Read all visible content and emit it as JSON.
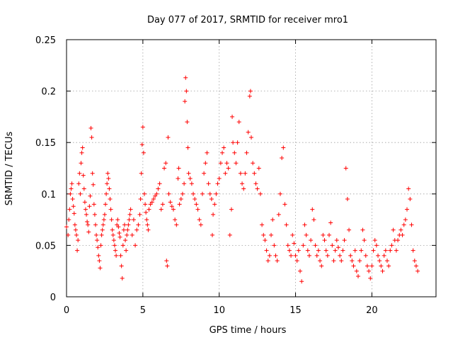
{
  "chart_data": {
    "type": "scatter",
    "title": "Day 077 of 2017, SRMTID for receiver mro1",
    "xlabel": "GPS time / hours",
    "ylabel": "SRMTID / TECUs",
    "xlim": [
      0,
      24.2
    ],
    "ylim": [
      0,
      0.25
    ],
    "grid": true,
    "marker": "plus",
    "x_tick_values": [
      0,
      5,
      10,
      15,
      20
    ],
    "x_tick_labels": [
      "0",
      "5",
      "10",
      "15",
      "20"
    ],
    "y_tick_values": [
      0,
      0.05,
      0.1,
      0.15,
      0.2,
      0.25
    ],
    "y_tick_labels": [
      "0",
      "0.05",
      "0.1",
      "0.15",
      "0.2",
      "0.25"
    ],
    "series": [
      {
        "name": "SRMTID",
        "color": "#ff0000",
        "points": [
          [
            0.0,
            0.068
          ],
          [
            0.1,
            0.06
          ],
          [
            0.15,
            0.075
          ],
          [
            0.2,
            0.085
          ],
          [
            0.25,
            0.1
          ],
          [
            0.3,
            0.105
          ],
          [
            0.35,
            0.11
          ],
          [
            0.4,
            0.095
          ],
          [
            0.45,
            0.088
          ],
          [
            0.5,
            0.081
          ],
          [
            0.55,
            0.07
          ],
          [
            0.6,
            0.065
          ],
          [
            0.65,
            0.06
          ],
          [
            0.7,
            0.045
          ],
          [
            0.75,
            0.055
          ],
          [
            0.8,
            0.11
          ],
          [
            0.85,
            0.12
          ],
          [
            0.9,
            0.1
          ],
          [
            0.95,
            0.13
          ],
          [
            1.0,
            0.14
          ],
          [
            1.05,
            0.145
          ],
          [
            1.1,
            0.118
          ],
          [
            1.15,
            0.105
          ],
          [
            1.2,
            0.092
          ],
          [
            1.25,
            0.085
          ],
          [
            1.3,
            0.08
          ],
          [
            1.35,
            0.073
          ],
          [
            1.4,
            0.07
          ],
          [
            1.45,
            0.063
          ],
          [
            1.5,
            0.088
          ],
          [
            1.55,
            0.098
          ],
          [
            1.6,
            0.164
          ],
          [
            1.65,
            0.155
          ],
          [
            1.7,
            0.12
          ],
          [
            1.75,
            0.109
          ],
          [
            1.8,
            0.09
          ],
          [
            1.85,
            0.08
          ],
          [
            1.9,
            0.07
          ],
          [
            1.95,
            0.06
          ],
          [
            2.0,
            0.055
          ],
          [
            2.05,
            0.048
          ],
          [
            2.1,
            0.04
          ],
          [
            2.15,
            0.035
          ],
          [
            2.2,
            0.028
          ],
          [
            2.25,
            0.05
          ],
          [
            2.3,
            0.06
          ],
          [
            2.35,
            0.065
          ],
          [
            2.4,
            0.07
          ],
          [
            2.45,
            0.075
          ],
          [
            2.5,
            0.08
          ],
          [
            2.55,
            0.09
          ],
          [
            2.6,
            0.1
          ],
          [
            2.65,
            0.11
          ],
          [
            2.7,
            0.12
          ],
          [
            2.75,
            0.115
          ],
          [
            2.8,
            0.105
          ],
          [
            2.85,
            0.095
          ],
          [
            2.9,
            0.085
          ],
          [
            2.95,
            0.075
          ],
          [
            3.0,
            0.065
          ],
          [
            3.05,
            0.06
          ],
          [
            3.1,
            0.055
          ],
          [
            3.15,
            0.05
          ],
          [
            3.2,
            0.045
          ],
          [
            3.25,
            0.04
          ],
          [
            3.3,
            0.07
          ],
          [
            3.35,
            0.075
          ],
          [
            3.4,
            0.068
          ],
          [
            3.45,
            0.062
          ],
          [
            3.5,
            0.058
          ],
          [
            3.55,
            0.04
          ],
          [
            3.6,
            0.03
          ],
          [
            3.65,
            0.018
          ],
          [
            3.7,
            0.05
          ],
          [
            3.75,
            0.065
          ],
          [
            3.8,
            0.07
          ],
          [
            3.85,
            0.055
          ],
          [
            3.9,
            0.045
          ],
          [
            3.95,
            0.06
          ],
          [
            4.0,
            0.065
          ],
          [
            4.05,
            0.07
          ],
          [
            4.1,
            0.075
          ],
          [
            4.15,
            0.08
          ],
          [
            4.2,
            0.085
          ],
          [
            4.3,
            0.06
          ],
          [
            4.4,
            0.075
          ],
          [
            4.5,
            0.05
          ],
          [
            4.6,
            0.065
          ],
          [
            4.7,
            0.07
          ],
          [
            4.8,
            0.08
          ],
          [
            4.85,
            0.095
          ],
          [
            4.9,
            0.12
          ],
          [
            4.95,
            0.148
          ],
          [
            5.0,
            0.165
          ],
          [
            5.05,
            0.14
          ],
          [
            5.1,
            0.1
          ],
          [
            5.15,
            0.09
          ],
          [
            5.2,
            0.082
          ],
          [
            5.25,
            0.075
          ],
          [
            5.3,
            0.07
          ],
          [
            5.35,
            0.065
          ],
          [
            5.4,
            0.085
          ],
          [
            5.5,
            0.09
          ],
          [
            5.6,
            0.092
          ],
          [
            5.7,
            0.095
          ],
          [
            5.8,
            0.098
          ],
          [
            5.9,
            0.1
          ],
          [
            6.0,
            0.105
          ],
          [
            6.1,
            0.11
          ],
          [
            6.2,
            0.085
          ],
          [
            6.3,
            0.09
          ],
          [
            6.4,
            0.125
          ],
          [
            6.5,
            0.13
          ],
          [
            6.55,
            0.035
          ],
          [
            6.6,
            0.03
          ],
          [
            6.65,
            0.155
          ],
          [
            6.7,
            0.1
          ],
          [
            6.8,
            0.092
          ],
          [
            6.9,
            0.088
          ],
          [
            7.0,
            0.085
          ],
          [
            7.1,
            0.075
          ],
          [
            7.2,
            0.07
          ],
          [
            7.3,
            0.115
          ],
          [
            7.35,
            0.125
          ],
          [
            7.4,
            0.09
          ],
          [
            7.5,
            0.095
          ],
          [
            7.6,
            0.1
          ],
          [
            7.7,
            0.11
          ],
          [
            7.75,
            0.19
          ],
          [
            7.8,
            0.213
          ],
          [
            7.85,
            0.2
          ],
          [
            7.9,
            0.17
          ],
          [
            7.95,
            0.145
          ],
          [
            8.0,
            0.12
          ],
          [
            8.1,
            0.115
          ],
          [
            8.2,
            0.11
          ],
          [
            8.3,
            0.1
          ],
          [
            8.4,
            0.095
          ],
          [
            8.5,
            0.09
          ],
          [
            8.6,
            0.085
          ],
          [
            8.7,
            0.075
          ],
          [
            8.8,
            0.07
          ],
          [
            8.9,
            0.1
          ],
          [
            9.0,
            0.12
          ],
          [
            9.1,
            0.13
          ],
          [
            9.2,
            0.14
          ],
          [
            9.3,
            0.11
          ],
          [
            9.4,
            0.1
          ],
          [
            9.5,
            0.095
          ],
          [
            9.55,
            0.06
          ],
          [
            9.6,
            0.08
          ],
          [
            9.7,
            0.09
          ],
          [
            9.8,
            0.1
          ],
          [
            9.9,
            0.11
          ],
          [
            10.0,
            0.115
          ],
          [
            10.1,
            0.13
          ],
          [
            10.2,
            0.14
          ],
          [
            10.3,
            0.145
          ],
          [
            10.4,
            0.12
          ],
          [
            10.5,
            0.13
          ],
          [
            10.6,
            0.125
          ],
          [
            10.7,
            0.06
          ],
          [
            10.8,
            0.085
          ],
          [
            10.85,
            0.175
          ],
          [
            10.9,
            0.15
          ],
          [
            11.0,
            0.14
          ],
          [
            11.1,
            0.13
          ],
          [
            11.2,
            0.15
          ],
          [
            11.3,
            0.17
          ],
          [
            11.4,
            0.12
          ],
          [
            11.5,
            0.11
          ],
          [
            11.6,
            0.105
          ],
          [
            11.7,
            0.12
          ],
          [
            11.8,
            0.14
          ],
          [
            11.9,
            0.16
          ],
          [
            12.0,
            0.195
          ],
          [
            12.05,
            0.2
          ],
          [
            12.1,
            0.155
          ],
          [
            12.2,
            0.13
          ],
          [
            12.3,
            0.12
          ],
          [
            12.4,
            0.11
          ],
          [
            12.5,
            0.105
          ],
          [
            12.6,
            0.125
          ],
          [
            12.7,
            0.1
          ],
          [
            12.8,
            0.07
          ],
          [
            12.9,
            0.06
          ],
          [
            13.0,
            0.055
          ],
          [
            13.1,
            0.045
          ],
          [
            13.2,
            0.035
          ],
          [
            13.3,
            0.04
          ],
          [
            13.4,
            0.06
          ],
          [
            13.5,
            0.075
          ],
          [
            13.6,
            0.05
          ],
          [
            13.7,
            0.04
          ],
          [
            13.8,
            0.035
          ],
          [
            13.9,
            0.08
          ],
          [
            14.0,
            0.1
          ],
          [
            14.1,
            0.135
          ],
          [
            14.2,
            0.145
          ],
          [
            14.3,
            0.09
          ],
          [
            14.4,
            0.07
          ],
          [
            14.5,
            0.05
          ],
          [
            14.6,
            0.045
          ],
          [
            14.7,
            0.04
          ],
          [
            14.8,
            0.06
          ],
          [
            14.9,
            0.052
          ],
          [
            15.0,
            0.04
          ],
          [
            15.1,
            0.035
          ],
          [
            15.2,
            0.045
          ],
          [
            15.3,
            0.025
          ],
          [
            15.4,
            0.015
          ],
          [
            15.5,
            0.05
          ],
          [
            15.6,
            0.07
          ],
          [
            15.7,
            0.06
          ],
          [
            15.8,
            0.045
          ],
          [
            15.9,
            0.04
          ],
          [
            16.0,
            0.055
          ],
          [
            16.1,
            0.085
          ],
          [
            16.2,
            0.075
          ],
          [
            16.3,
            0.05
          ],
          [
            16.4,
            0.04
          ],
          [
            16.5,
            0.045
          ],
          [
            16.6,
            0.035
          ],
          [
            16.7,
            0.03
          ],
          [
            16.8,
            0.06
          ],
          [
            16.9,
            0.055
          ],
          [
            17.0,
            0.045
          ],
          [
            17.1,
            0.04
          ],
          [
            17.2,
            0.06
          ],
          [
            17.3,
            0.072
          ],
          [
            17.4,
            0.05
          ],
          [
            17.5,
            0.035
          ],
          [
            17.6,
            0.045
          ],
          [
            17.7,
            0.055
          ],
          [
            17.8,
            0.048
          ],
          [
            17.9,
            0.04
          ],
          [
            18.0,
            0.035
          ],
          [
            18.1,
            0.045
          ],
          [
            18.2,
            0.055
          ],
          [
            18.3,
            0.125
          ],
          [
            18.4,
            0.095
          ],
          [
            18.5,
            0.065
          ],
          [
            18.6,
            0.04
          ],
          [
            18.7,
            0.035
          ],
          [
            18.8,
            0.03
          ],
          [
            18.9,
            0.045
          ],
          [
            19.0,
            0.025
          ],
          [
            19.1,
            0.02
          ],
          [
            19.2,
            0.035
          ],
          [
            19.3,
            0.045
          ],
          [
            19.4,
            0.065
          ],
          [
            19.5,
            0.055
          ],
          [
            19.6,
            0.04
          ],
          [
            19.7,
            0.03
          ],
          [
            19.8,
            0.025
          ],
          [
            19.9,
            0.018
          ],
          [
            20.0,
            0.03
          ],
          [
            20.1,
            0.045
          ],
          [
            20.2,
            0.055
          ],
          [
            20.3,
            0.05
          ],
          [
            20.4,
            0.04
          ],
          [
            20.5,
            0.035
          ],
          [
            20.6,
            0.03
          ],
          [
            20.7,
            0.025
          ],
          [
            20.8,
            0.04
          ],
          [
            20.9,
            0.045
          ],
          [
            21.0,
            0.035
          ],
          [
            21.1,
            0.03
          ],
          [
            21.2,
            0.045
          ],
          [
            21.3,
            0.05
          ],
          [
            21.4,
            0.065
          ],
          [
            21.5,
            0.055
          ],
          [
            21.6,
            0.045
          ],
          [
            21.7,
            0.055
          ],
          [
            21.8,
            0.06
          ],
          [
            21.9,
            0.065
          ],
          [
            22.0,
            0.06
          ],
          [
            22.1,
            0.07
          ],
          [
            22.2,
            0.075
          ],
          [
            22.3,
            0.085
          ],
          [
            22.4,
            0.105
          ],
          [
            22.5,
            0.095
          ],
          [
            22.6,
            0.07
          ],
          [
            22.7,
            0.045
          ],
          [
            22.8,
            0.035
          ],
          [
            22.9,
            0.03
          ],
          [
            23.0,
            0.025
          ]
        ]
      }
    ]
  }
}
